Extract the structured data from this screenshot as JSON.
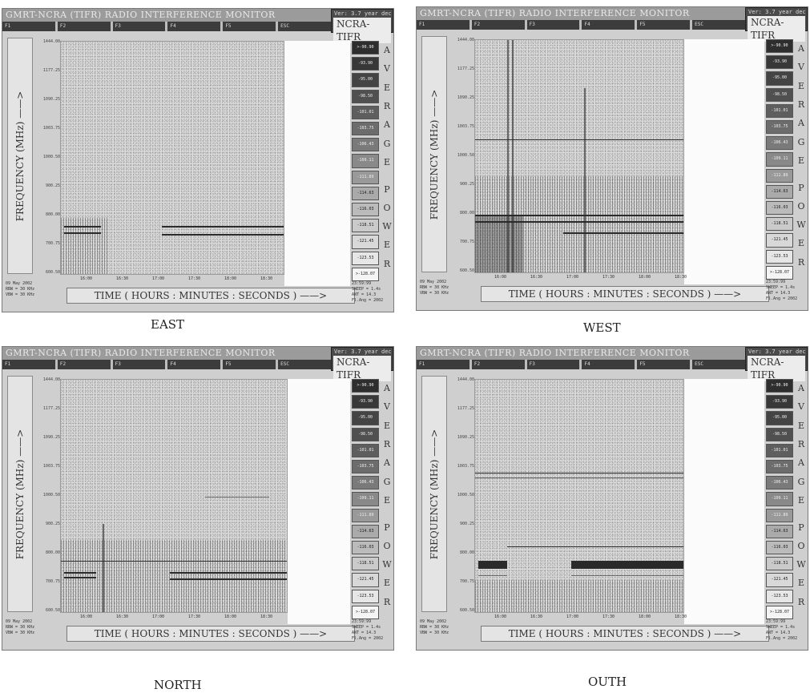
{
  "panels": [
    {
      "id": "east",
      "title": "GMRT-NCRA (TIFR) RADIO INTERFERENCE MONITOR",
      "version": "Ver: 3.7 year dec",
      "brand": "NCRA-TIFR",
      "fkeys": [
        "F1",
        "F2",
        "F3",
        "F4",
        "F5",
        "ESC"
      ],
      "ylabel": "FREQUENCY (MHz) ——>",
      "xlabel": "TIME ( HOURS : MINUTES : SECONDS ) ——>",
      "yticks": [
        "1444.00",
        "1177.25",
        "1090.25",
        "1003.75",
        "1000.50",
        "900.25",
        "800.00",
        "700.75",
        "600.50"
      ],
      "xticks": [
        "16:00",
        "16:30",
        "17:00",
        "17:30",
        "18:00",
        "18:30"
      ],
      "legend": [
        ">-90.90",
        "-93.90",
        "-95.00",
        "-98.50",
        "-101.01",
        "-103.75",
        "-106.43",
        "-109.11",
        "-111.89",
        "-114.63",
        "-116.03",
        "-118.51",
        "-121.45",
        "-123.53",
        ">-128.07"
      ],
      "legend_word": [
        "A",
        "V",
        "E",
        "R",
        "A",
        "G",
        "E",
        "",
        "P",
        "O",
        "W",
        "E",
        "R"
      ],
      "meta_left": [
        "09 May 2002",
        "RBW = 30 KHz",
        "VBW = 30 KHz"
      ],
      "meta_right": [
        "23:59:99",
        "SWEEP = 1.4s",
        "ANT = 14.3",
        "Fl.Ang = 2002"
      ],
      "caption": "EAST"
    },
    {
      "id": "west",
      "title": "GMRT-NCRA (TIFR) RADIO INTERFERENCE MONITOR",
      "version": "Ver: 3.7 year dec",
      "brand": "NCRA-TIFR",
      "fkeys": [
        "F1",
        "F2",
        "F3",
        "F4",
        "F5",
        "ESC"
      ],
      "ylabel": "FREQUENCY (MHz) ——>",
      "xlabel": "TIME ( HOURS : MINUTES : SECONDS ) ——>",
      "yticks": [
        "1444.00",
        "1177.25",
        "1090.25",
        "1003.75",
        "1000.50",
        "900.25",
        "800.00",
        "700.75",
        "600.50"
      ],
      "xticks": [
        "16:00",
        "16:30",
        "17:00",
        "17:30",
        "18:00",
        "18:30"
      ],
      "legend": [
        ">-90.90",
        "-93.90",
        "-95.00",
        "-98.50",
        "-101.01",
        "-103.75",
        "-106.43",
        "-109.11",
        "-111.89",
        "-114.63",
        "-116.03",
        "-118.51",
        "-121.45",
        "-123.53",
        ">-128.07"
      ],
      "legend_word": [
        "A",
        "V",
        "E",
        "R",
        "A",
        "G",
        "E",
        "",
        "P",
        "O",
        "W",
        "E",
        "R"
      ],
      "meta_left": [
        "09 May 2002",
        "RBW = 30 KHz",
        "VBW = 30 KHz"
      ],
      "meta_right": [
        "23:59:99",
        "SWEEP = 1.4s",
        "ANT = 14.3",
        "Fl.Ang = 2002"
      ],
      "caption": "WEST"
    },
    {
      "id": "north",
      "title": "GMRT-NCRA (TIFR) RADIO INTERFERENCE MONITOR",
      "version": "Ver: 3.7 year dec",
      "brand": "NCRA-TIFR",
      "fkeys": [
        "F1",
        "F2",
        "F3",
        "F4",
        "F5",
        "ESC"
      ],
      "ylabel": "FREQUENCY (MHz) ——>",
      "xlabel": "TIME ( HOURS : MINUTES : SECONDS ) ——>",
      "yticks": [
        "1444.00",
        "1177.25",
        "1090.25",
        "1003.75",
        "1000.50",
        "900.25",
        "800.00",
        "700.75",
        "600.50"
      ],
      "xticks": [
        "16:00",
        "16:30",
        "17:00",
        "17:30",
        "18:00",
        "18:30"
      ],
      "legend": [
        ">-90.90",
        "-93.90",
        "-95.00",
        "-98.50",
        "-101.01",
        "-103.75",
        "-106.43",
        "-109.11",
        "-111.89",
        "-114.63",
        "-116.03",
        "-118.51",
        "-121.45",
        "-123.53",
        ">-128.07"
      ],
      "legend_word": [
        "A",
        "V",
        "E",
        "R",
        "A",
        "G",
        "E",
        "",
        "P",
        "O",
        "W",
        "E",
        "R"
      ],
      "meta_left": [
        "09 May 2002",
        "RBW = 30 KHz",
        "VBW = 30 KHz"
      ],
      "meta_right": [
        "23:59:99",
        "SWEEP = 1.4s",
        "ANT = 14.3",
        "Fl.Ang = 2002"
      ],
      "caption": "NORTH"
    },
    {
      "id": "south",
      "title": "GMRT-NCRA (TIFR) RADIO INTERFERENCE MONITOR",
      "version": "Ver: 3.7 year dec",
      "brand": "NCRA-TIFR",
      "fkeys": [
        "F1",
        "F2",
        "F3",
        "F4",
        "F5",
        "ESC"
      ],
      "ylabel": "FREQUENCY (MHz) ——>",
      "xlabel": "TIME ( HOURS : MINUTES : SECONDS ) ——>",
      "yticks": [
        "1444.00",
        "1177.25",
        "1090.25",
        "1003.75",
        "1000.50",
        "900.25",
        "800.00",
        "700.75",
        "600.50"
      ],
      "xticks": [
        "16:00",
        "16:30",
        "17:00",
        "17:30",
        "18:00",
        "18:30"
      ],
      "legend": [
        ">-90.90",
        "-93.90",
        "-95.00",
        "-98.50",
        "-101.01",
        "-103.75",
        "-106.43",
        "-109.11",
        "-111.89",
        "-114.63",
        "-116.03",
        "-118.51",
        "-121.45",
        "-123.53",
        ">-128.07"
      ],
      "legend_word": [
        "A",
        "V",
        "E",
        "R",
        "A",
        "G",
        "E",
        "",
        "P",
        "O",
        "W",
        "E",
        "R"
      ],
      "meta_left": [
        "09 May 2002",
        "RBW = 30 KHz",
        "VBW = 30 KHz"
      ],
      "meta_right": [
        "23:59:99",
        "SWEEP = 1.4s",
        "ANT = 14.3",
        "Fl.Ang = 2002"
      ],
      "caption": "OUTH"
    }
  ],
  "colors": {
    "screen_bg": "#cfcfcf",
    "plot_bg": "#dadada",
    "signal": "#2b2b2b",
    "legend_dark": "#2e2e2e",
    "legend_light": "#f4f4f4"
  }
}
